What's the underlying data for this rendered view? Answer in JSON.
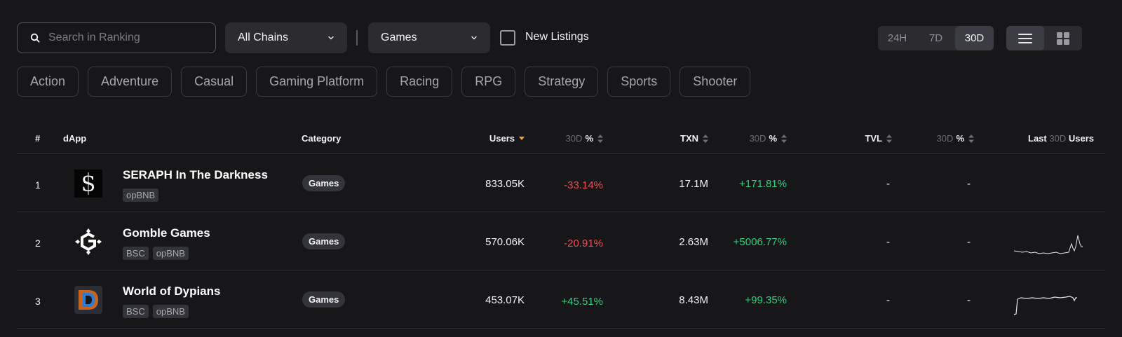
{
  "search": {
    "placeholder": "Search in Ranking"
  },
  "filters": {
    "chain": "All Chains",
    "category": "Games",
    "new_listings_label": "New Listings",
    "new_listings_checked": false
  },
  "period": {
    "options": [
      "24H",
      "7D",
      "30D"
    ],
    "selected": "30D"
  },
  "view": {
    "selected": "list"
  },
  "chips": [
    "Action",
    "Adventure",
    "Casual",
    "Gaming Platform",
    "Racing",
    "RPG",
    "Strategy",
    "Sports",
    "Shooter"
  ],
  "table": {
    "headers": {
      "rank": "#",
      "dapp": "dApp",
      "category": "Category",
      "users": "Users",
      "period": "30D",
      "pct": "%",
      "txn": "TXN",
      "tvl": "TVL",
      "last_prefix": "Last",
      "last_period": "30D",
      "last_suffix": "Users"
    },
    "rows": [
      {
        "rank": "1",
        "name": "SERAPH In The Darkness",
        "tags": [
          "opBNB"
        ],
        "category": "Games",
        "users": "833.05K",
        "users_change": "-33.14%",
        "txn": "17.1M",
        "txn_change": "+171.81%",
        "tvl": "-",
        "tvl_change": "-",
        "logo_icon": "seraph-logo-icon"
      },
      {
        "rank": "2",
        "name": "Gomble Games",
        "tags": [
          "BSC",
          "opBNB"
        ],
        "category": "Games",
        "users": "570.06K",
        "users_change": "-20.91%",
        "txn": "2.63M",
        "txn_change": "+5006.77%",
        "tvl": "-",
        "tvl_change": "-",
        "logo_icon": "gomble-logo-icon"
      },
      {
        "rank": "3",
        "name": "World of Dypians",
        "tags": [
          "BSC",
          "opBNB"
        ],
        "category": "Games",
        "users": "453.07K",
        "users_change": "+45.51%",
        "txn": "8.43M",
        "txn_change": "+99.35%",
        "tvl": "-",
        "tvl_change": "-",
        "logo_icon": "dypians-logo-icon"
      }
    ]
  },
  "colors": {
    "negative": "#ef4d56",
    "positive": "#2fcf7c",
    "sort_active": "#f0a62a",
    "background": "#17171a"
  }
}
